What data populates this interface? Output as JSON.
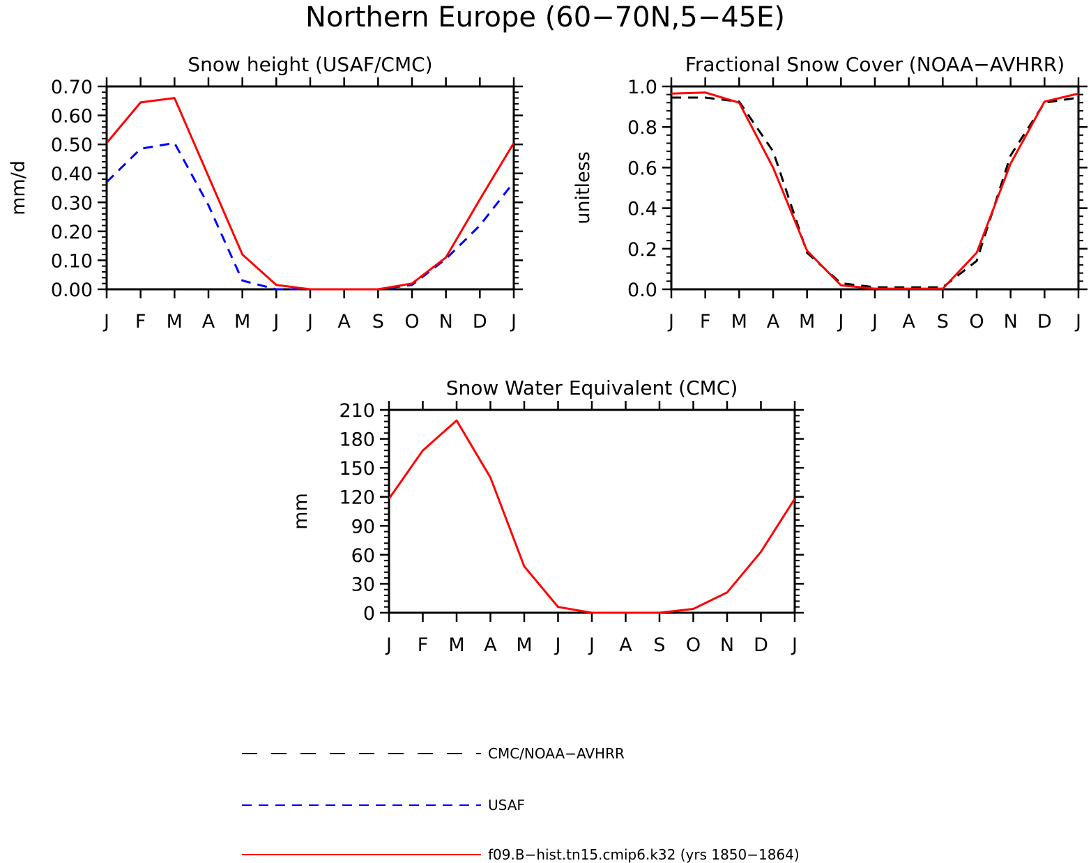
{
  "main_title": "Northern Europe (60−70N,5−45E)",
  "chart_data": [
    {
      "type": "line",
      "title": "Snow height (USAF/CMC)",
      "xlabel": "",
      "ylabel": "mm/d",
      "x": [
        "J",
        "F",
        "M",
        "A",
        "M",
        "J",
        "J",
        "A",
        "S",
        "O",
        "N",
        "D",
        "J"
      ],
      "ylim": [
        0,
        0.7
      ],
      "yticks": [
        "0.00",
        "0.10",
        "0.20",
        "0.30",
        "0.40",
        "0.50",
        "0.60",
        "0.70"
      ],
      "grid": false,
      "series": [
        {
          "name": "CMC/NOAA-AVHRR",
          "color": "#000000",
          "dash": "long",
          "values": [
            0,
            0,
            0,
            0,
            0,
            0,
            0,
            0,
            0,
            0,
            0,
            0,
            0
          ]
        },
        {
          "name": "USAF",
          "color": "#0000ff",
          "dash": "medium",
          "values": [
            0.37,
            0.485,
            0.505,
            0.29,
            0.03,
            0.0,
            0.0,
            0.0,
            0.0,
            0.015,
            0.105,
            0.22,
            0.37
          ]
        },
        {
          "name": "f09.B−hist.tn15.cmip6.k32 (yrs 1850−1864)",
          "color": "#ff0000",
          "dash": "solid",
          "values": [
            0.505,
            0.645,
            0.66,
            0.39,
            0.12,
            0.015,
            0.0,
            0.0,
            0.0,
            0.02,
            0.11,
            0.31,
            0.505
          ]
        }
      ]
    },
    {
      "type": "line",
      "title": "Fractional Snow Cover (NOAA−AVHRR)",
      "xlabel": "",
      "ylabel": "unitless",
      "x": [
        "J",
        "F",
        "M",
        "A",
        "M",
        "J",
        "J",
        "A",
        "S",
        "O",
        "N",
        "D",
        "J"
      ],
      "ylim": [
        0,
        1.0
      ],
      "yticks": [
        "0.0",
        "0.2",
        "0.4",
        "0.6",
        "0.8",
        "1.0"
      ],
      "grid": false,
      "series": [
        {
          "name": "CMC/NOAA-AVHRR",
          "color": "#000000",
          "dash": "medium",
          "values": [
            0.945,
            0.945,
            0.925,
            0.68,
            0.18,
            0.03,
            0.01,
            0.01,
            0.01,
            0.14,
            0.66,
            0.92,
            0.945
          ]
        },
        {
          "name": "f09.B−hist.tn15.cmip6.k32 (yrs 1850−1864)",
          "color": "#ff0000",
          "dash": "solid",
          "values": [
            0.965,
            0.97,
            0.92,
            0.6,
            0.19,
            0.02,
            0.003,
            0.003,
            0.003,
            0.18,
            0.62,
            0.925,
            0.965
          ]
        }
      ]
    },
    {
      "type": "line",
      "title": "Snow Water Equivalent (CMC)",
      "xlabel": "",
      "ylabel": "mm",
      "x": [
        "J",
        "F",
        "M",
        "A",
        "M",
        "J",
        "J",
        "A",
        "S",
        "O",
        "N",
        "D",
        "J"
      ],
      "ylim": [
        0,
        210
      ],
      "yticks": [
        "0",
        "30",
        "60",
        "90",
        "120",
        "150",
        "180",
        "210"
      ],
      "grid": false,
      "series": [
        {
          "name": "CMC/NOAA-AVHRR",
          "color": "#000000",
          "dash": "long",
          "values": [
            0,
            0,
            0,
            0,
            0,
            0,
            0,
            0,
            0,
            0,
            0,
            0,
            0
          ]
        },
        {
          "name": "f09.B−hist.tn15.cmip6.k32 (yrs 1850−1864)",
          "color": "#ff0000",
          "dash": "solid",
          "values": [
            118,
            168,
            199,
            140,
            48,
            6,
            0,
            0,
            0,
            4,
            21,
            63,
            118
          ]
        }
      ]
    }
  ],
  "legend": {
    "placement": "bottom",
    "items": [
      {
        "label": "CMC/NOAA−AVHRR",
        "color": "#000000",
        "dash": "long"
      },
      {
        "label": "USAF",
        "color": "#0000ff",
        "dash": "medium"
      },
      {
        "label": "f09.B−hist.tn15.cmip6.k32 (yrs 1850−1864)",
        "color": "#ff0000",
        "dash": "solid"
      }
    ]
  }
}
